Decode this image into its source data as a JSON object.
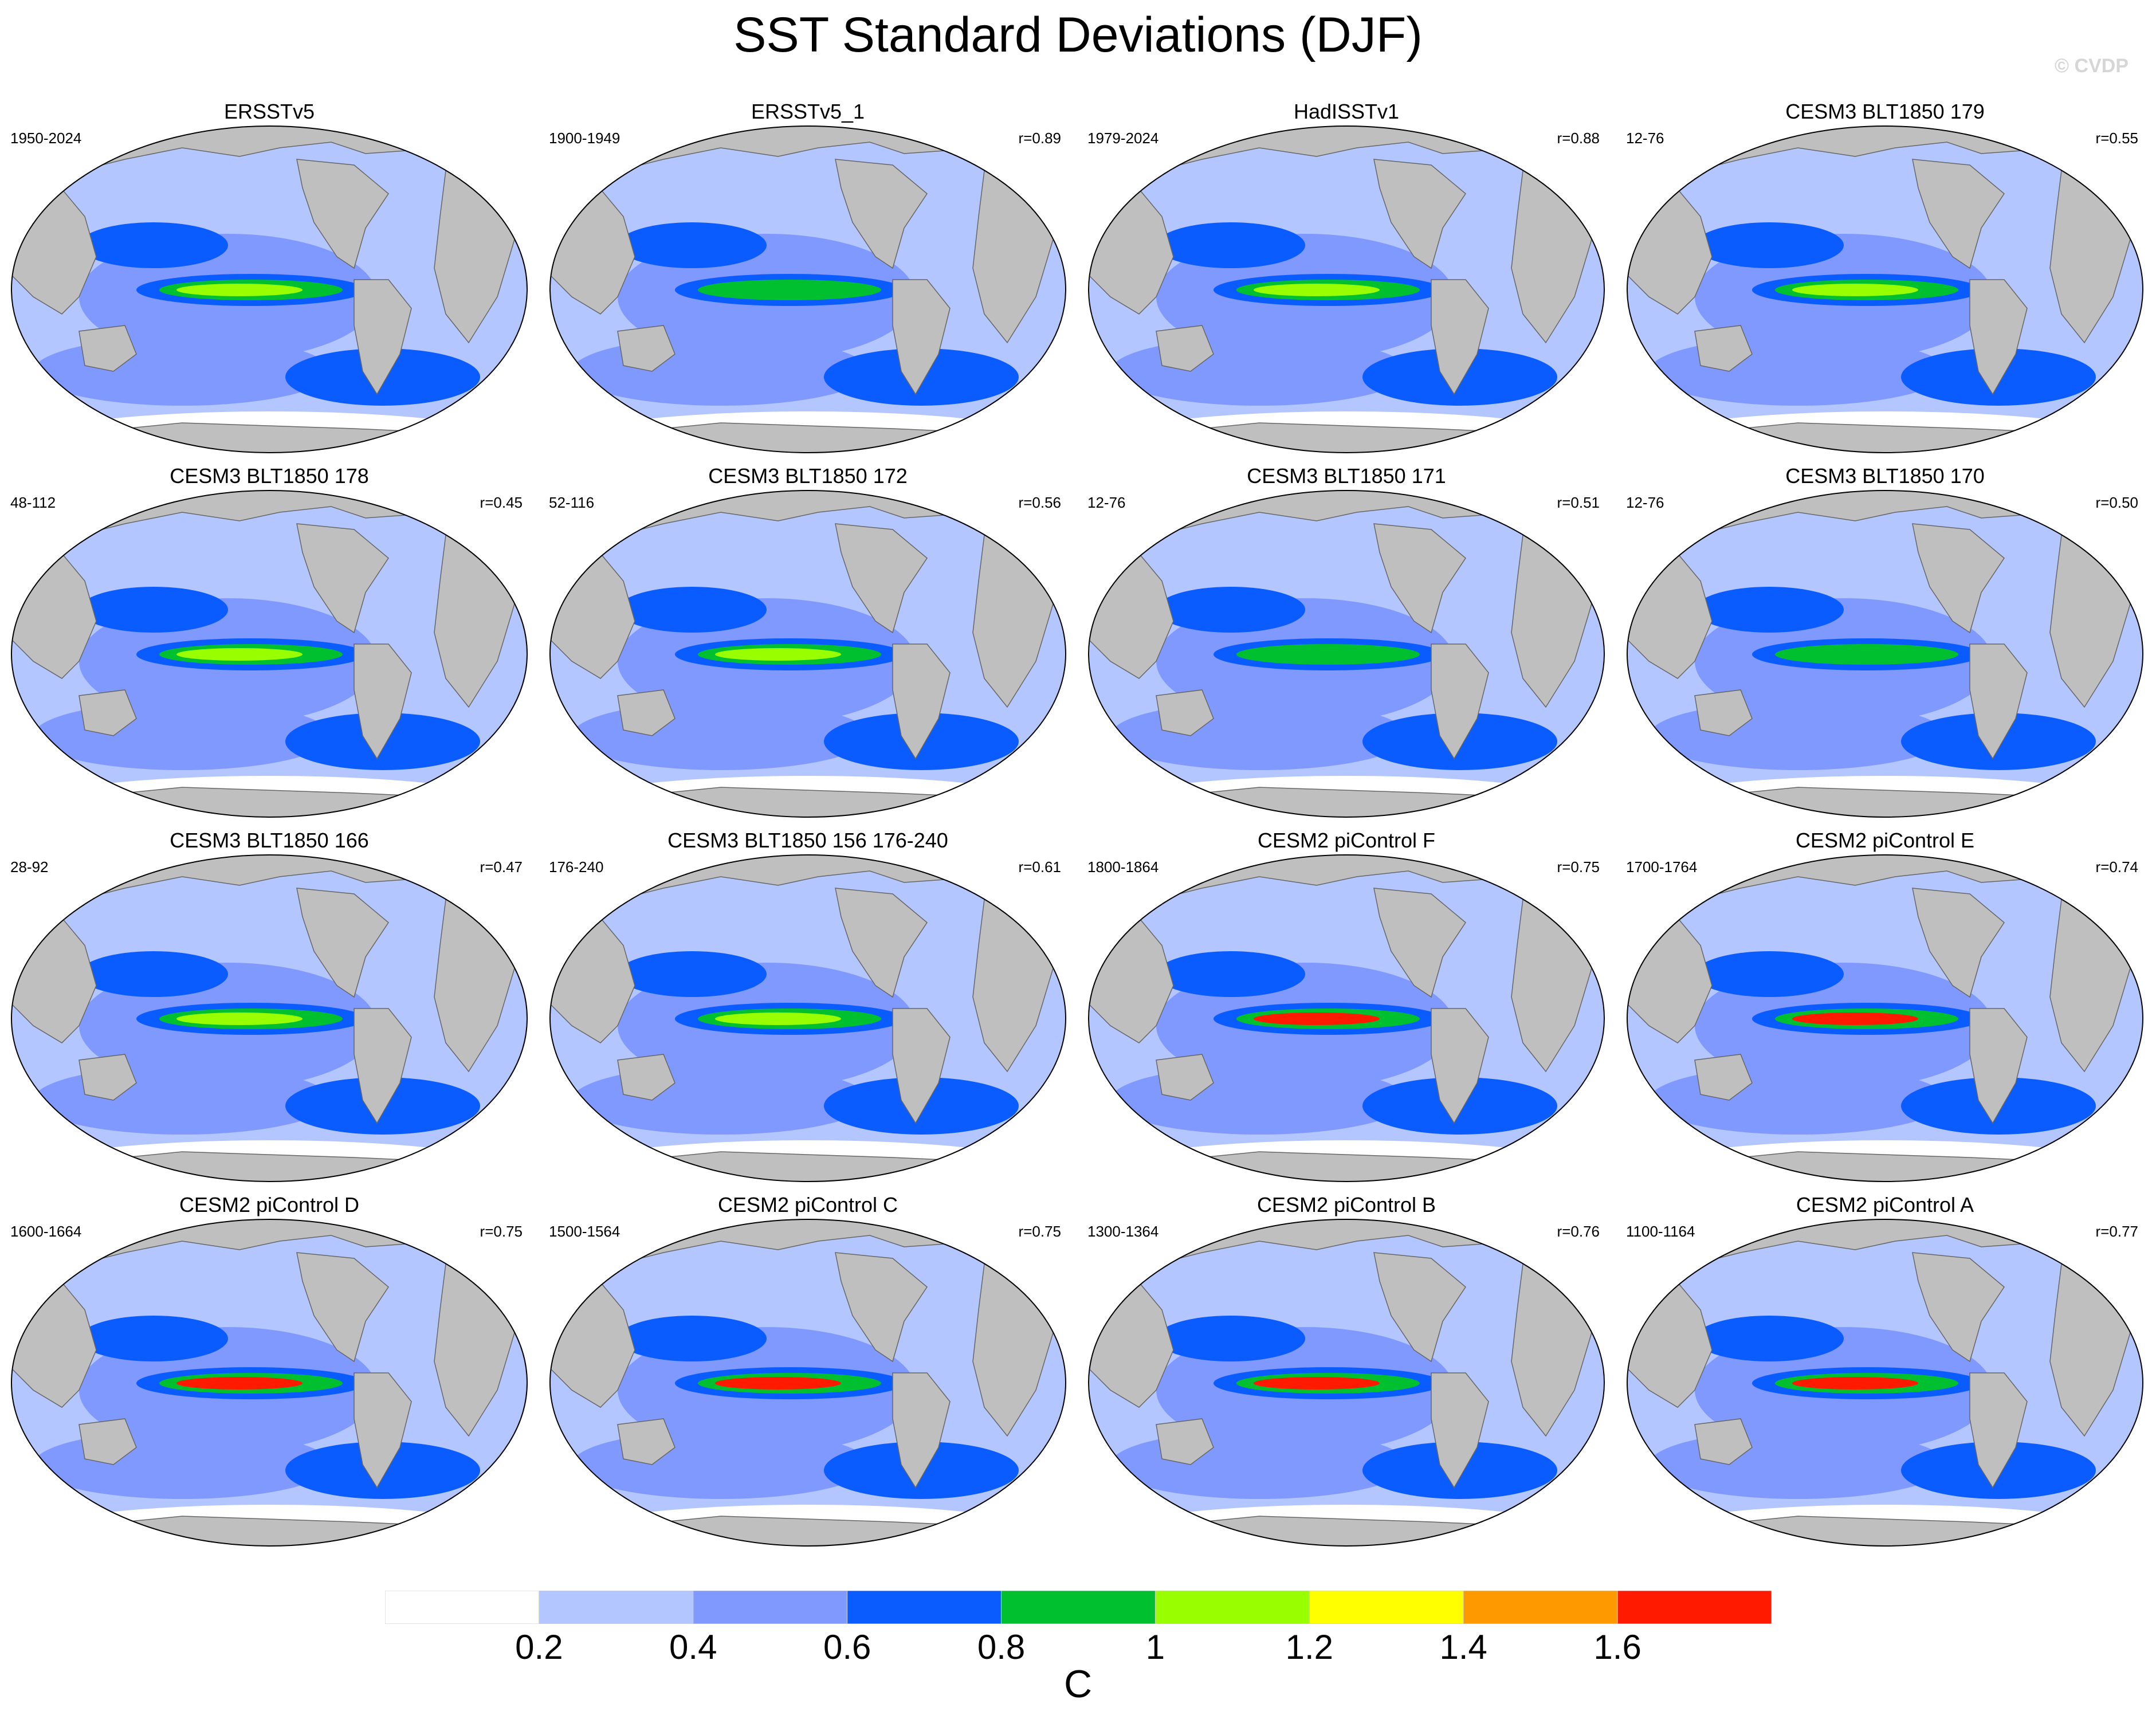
{
  "figure": {
    "title": "SST Standard Deviations (DJF)",
    "copyright": "© CVDP",
    "units": "C"
  },
  "colors": {
    "land": "#bfbfbf",
    "levels": [
      "#ffffff",
      "#b3c6ff",
      "#8099ff",
      "#0a5cff",
      "#00c030",
      "#99ff00",
      "#ffff00",
      "#ff9900",
      "#ff1a00"
    ]
  },
  "colorbar": {
    "ticks": [
      "0.2",
      "0.4",
      "0.6",
      "0.8",
      "1",
      "1.2",
      "1.4",
      "1.6"
    ]
  },
  "panels": [
    {
      "title": "ERSSTv5",
      "period": "1950-2024",
      "corr": "",
      "enso": 0.95
    },
    {
      "title": "ERSSTv5_1",
      "period": "1900-1949",
      "corr": "r=0.89",
      "enso": 0.85
    },
    {
      "title": "HadISSTv1",
      "period": "1979-2024",
      "corr": "r=0.88",
      "enso": 1.0
    },
    {
      "title": "CESM3 BLT1850 179",
      "period": "12-76",
      "corr": "r=0.55",
      "enso": 0.9
    },
    {
      "title": "CESM3 BLT1850 178",
      "period": "48-112",
      "corr": "r=0.45",
      "enso": 1.05
    },
    {
      "title": "CESM3 BLT1850 172",
      "period": "52-116",
      "corr": "r=0.56",
      "enso": 0.9
    },
    {
      "title": "CESM3 BLT1850 171",
      "period": "12-76",
      "corr": "r=0.51",
      "enso": 0.85
    },
    {
      "title": "CESM3 BLT1850 170",
      "period": "12-76",
      "corr": "r=0.50",
      "enso": 0.85
    },
    {
      "title": "CESM3 BLT1850 166",
      "period": "28-92",
      "corr": "r=0.47",
      "enso": 0.9
    },
    {
      "title": "CESM3 BLT1850 156 176-240",
      "period": "176-240",
      "corr": "r=0.61",
      "enso": 1.0
    },
    {
      "title": "CESM2 piControl F",
      "period": "1800-1864",
      "corr": "r=0.75",
      "enso": 1.7
    },
    {
      "title": "CESM2 piControl E",
      "period": "1700-1764",
      "corr": "r=0.74",
      "enso": 1.7
    },
    {
      "title": "CESM2 piControl D",
      "period": "1600-1664",
      "corr": "r=0.75",
      "enso": 1.5
    },
    {
      "title": "CESM2 piControl C",
      "period": "1500-1564",
      "corr": "r=0.75",
      "enso": 1.75
    },
    {
      "title": "CESM2 piControl B",
      "period": "1300-1364",
      "corr": "r=0.76",
      "enso": 1.5
    },
    {
      "title": "CESM2 piControl A",
      "period": "1100-1164",
      "corr": "r=0.77",
      "enso": 1.6
    }
  ]
}
